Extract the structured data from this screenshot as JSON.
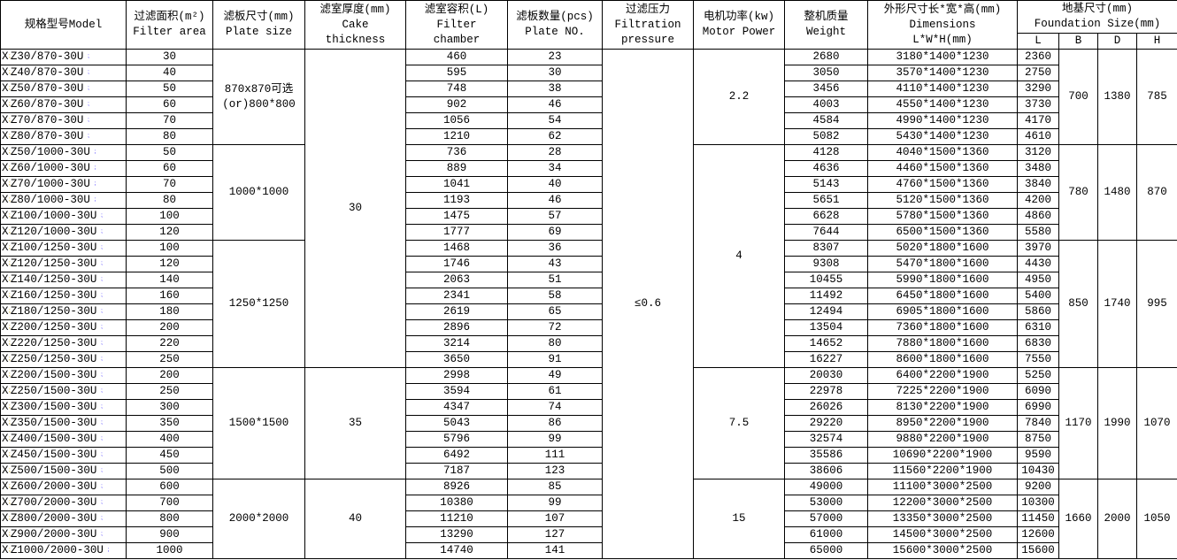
{
  "headers": {
    "model": "规格型号Model",
    "area_cn": "过滤面积(m²)",
    "area_en": "Filter area",
    "plate_cn": "滤板尺寸(mm)",
    "plate_en": "Plate size",
    "cake_cn": "滤室厚度(mm)",
    "cake_en1": "Cake",
    "cake_en2": "thickness",
    "chamber_cn": "滤室容积(L)",
    "chamber_en1": "Filter",
    "chamber_en2": "chamber",
    "plates_cn": "滤板数量(pcs)",
    "plates_en": "Plate NO.",
    "pressure_cn": "过滤压力",
    "pressure_en1": "Filtration",
    "pressure_en2": "pressure",
    "motor_cn": "电机功率(kw)",
    "motor_en": "Motor Power",
    "weight_cn": "整机质量",
    "weight_en": "Weight",
    "dims_cn": "外形尺寸长*宽*高(mm)",
    "dims_en1": "Dimensions",
    "dims_en2": "L*W*H(mm)",
    "found_cn": "地基尺寸(mm)",
    "found_en": "Foundation Size(mm)",
    "L": "L",
    "B": "B",
    "D": "D",
    "H": "H"
  },
  "rows": [
    [
      "Z30/870-30U",
      "30",
      "460",
      "23",
      "2680",
      "3180*1400*1230",
      "2360"
    ],
    [
      "Z40/870-30U",
      "40",
      "595",
      "30",
      "3050",
      "3570*1400*1230",
      "2750"
    ],
    [
      "Z50/870-30U",
      "50",
      "748",
      "38",
      "3456",
      "4110*1400*1230",
      "3290"
    ],
    [
      "Z60/870-30U",
      "60",
      "902",
      "46",
      "4003",
      "4550*1400*1230",
      "3730"
    ],
    [
      "Z70/870-30U",
      "70",
      "1056",
      "54",
      "4584",
      "4990*1400*1230",
      "4170"
    ],
    [
      "Z80/870-30U",
      "80",
      "1210",
      "62",
      "5082",
      "5430*1400*1230",
      "4610"
    ],
    [
      "Z50/1000-30U",
      "50",
      "736",
      "28",
      "4128",
      "4040*1500*1360",
      "3120"
    ],
    [
      "Z60/1000-30U",
      "60",
      "889",
      "34",
      "4636",
      "4460*1500*1360",
      "3480"
    ],
    [
      "Z70/1000-30U",
      "70",
      "1041",
      "40",
      "5143",
      "4760*1500*1360",
      "3840"
    ],
    [
      "Z80/1000-30U",
      "80",
      "1193",
      "46",
      "5651",
      "5120*1500*1360",
      "4200"
    ],
    [
      "Z100/1000-30U",
      "100",
      "1475",
      "57",
      "6628",
      "5780*1500*1360",
      "4860"
    ],
    [
      "Z120/1000-30U",
      "120",
      "1777",
      "69",
      "7644",
      "6500*1500*1360",
      "5580"
    ],
    [
      "Z100/1250-30U",
      "100",
      "1468",
      "36",
      "8307",
      "5020*1800*1600",
      "3970"
    ],
    [
      "Z120/1250-30U",
      "120",
      "1746",
      "43",
      "9308",
      "5470*1800*1600",
      "4430"
    ],
    [
      "Z140/1250-30U",
      "140",
      "2063",
      "51",
      "10455",
      "5990*1800*1600",
      "4950"
    ],
    [
      "Z160/1250-30U",
      "160",
      "2341",
      "58",
      "11492",
      "6450*1800*1600",
      "5400"
    ],
    [
      "Z180/1250-30U",
      "180",
      "2619",
      "65",
      "12494",
      "6905*1800*1600",
      "5860"
    ],
    [
      "Z200/1250-30U",
      "200",
      "2896",
      "72",
      "13504",
      "7360*1800*1600",
      "6310"
    ],
    [
      "Z220/1250-30U",
      "220",
      "3214",
      "80",
      "14652",
      "7880*1800*1600",
      "6830"
    ],
    [
      "Z250/1250-30U",
      "250",
      "3650",
      "91",
      "16227",
      "8600*1800*1600",
      "7550"
    ],
    [
      "Z200/1500-30U",
      "200",
      "2998",
      "49",
      "20030",
      "6400*2200*1900",
      "5250"
    ],
    [
      "Z250/1500-30U",
      "250",
      "3594",
      "61",
      "22978",
      "7225*2200*1900",
      "6090"
    ],
    [
      "Z300/1500-30U",
      "300",
      "4347",
      "74",
      "26026",
      "8130*2200*1900",
      "6990"
    ],
    [
      "Z350/1500-30U",
      "350",
      "5043",
      "86",
      "29220",
      "8950*2200*1900",
      "7840"
    ],
    [
      "Z400/1500-30U",
      "400",
      "5796",
      "99",
      "32574",
      "9880*2200*1900",
      "8750"
    ],
    [
      "Z450/1500-30U",
      "450",
      "6492",
      "111",
      "35586",
      "10690*2200*1900",
      "9590"
    ],
    [
      "Z500/1500-30U",
      "500",
      "7187",
      "123",
      "38606",
      "11560*2200*1900",
      "10430"
    ],
    [
      "Z600/2000-30U",
      "600",
      "8926",
      "85",
      "49000",
      "11100*3000*2500",
      "9200"
    ],
    [
      "Z700/2000-30U",
      "700",
      "10380",
      "99",
      "53000",
      "12200*3000*2500",
      "10300"
    ],
    [
      "Z800/2000-30U",
      "800",
      "11210",
      "107",
      "57000",
      "13350*3000*2500",
      "11450"
    ],
    [
      "Z900/2000-30U",
      "900",
      "13290",
      "127",
      "61000",
      "14500*3000*2500",
      "12600"
    ],
    [
      "Z1000/2000-30U",
      "1000",
      "14740",
      "141",
      "65000",
      "15600*3000*2500",
      "15600"
    ]
  ],
  "model_prefix": "X",
  "plate_groups": [
    {
      "start": 0,
      "span": 6,
      "label1": "870x870可选",
      "label2": "(or)800*800",
      "B": "700",
      "D": "1380",
      "H": "785"
    },
    {
      "start": 6,
      "span": 6,
      "label1": "1000*1000",
      "B": "780",
      "D": "1480",
      "H": "870"
    },
    {
      "start": 12,
      "span": 8,
      "label1": "1250*1250",
      "B": "850",
      "D": "1740",
      "H": "995"
    },
    {
      "start": 20,
      "span": 7,
      "label1": "1500*1500",
      "B": "1170",
      "D": "1990",
      "H": "1070"
    },
    {
      "start": 27,
      "span": 5,
      "label1": "2000*2000",
      "B": "1660",
      "D": "2000",
      "H": "1050"
    }
  ],
  "cake_groups": [
    {
      "start": 0,
      "span": 20,
      "value": "30"
    },
    {
      "start": 20,
      "span": 7,
      "value": "35"
    },
    {
      "start": 27,
      "span": 5,
      "value": "40"
    }
  ],
  "pressure": "≤0.6",
  "motor_groups": [
    {
      "start": 0,
      "span": 6,
      "value": "2.2"
    },
    {
      "start": 6,
      "span": 14,
      "value": "4"
    },
    {
      "start": 20,
      "span": 7,
      "value": "7.5"
    },
    {
      "start": 27,
      "span": 5,
      "value": "15"
    }
  ]
}
